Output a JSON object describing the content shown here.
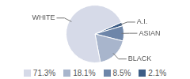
{
  "chart_data": {
    "type": "pie",
    "categories": [
      "WHITE",
      "BLACK",
      "ASIAN",
      "A.I."
    ],
    "values": [
      71.3,
      18.1,
      8.5,
      2.1
    ],
    "value_labels": [
      "71.3%",
      "18.1%",
      "8.5%",
      "2.1%"
    ],
    "colors": [
      "#d6dae8",
      "#a8b5cc",
      "#6e86a9",
      "#3d5d86"
    ],
    "legend": "bottom"
  }
}
